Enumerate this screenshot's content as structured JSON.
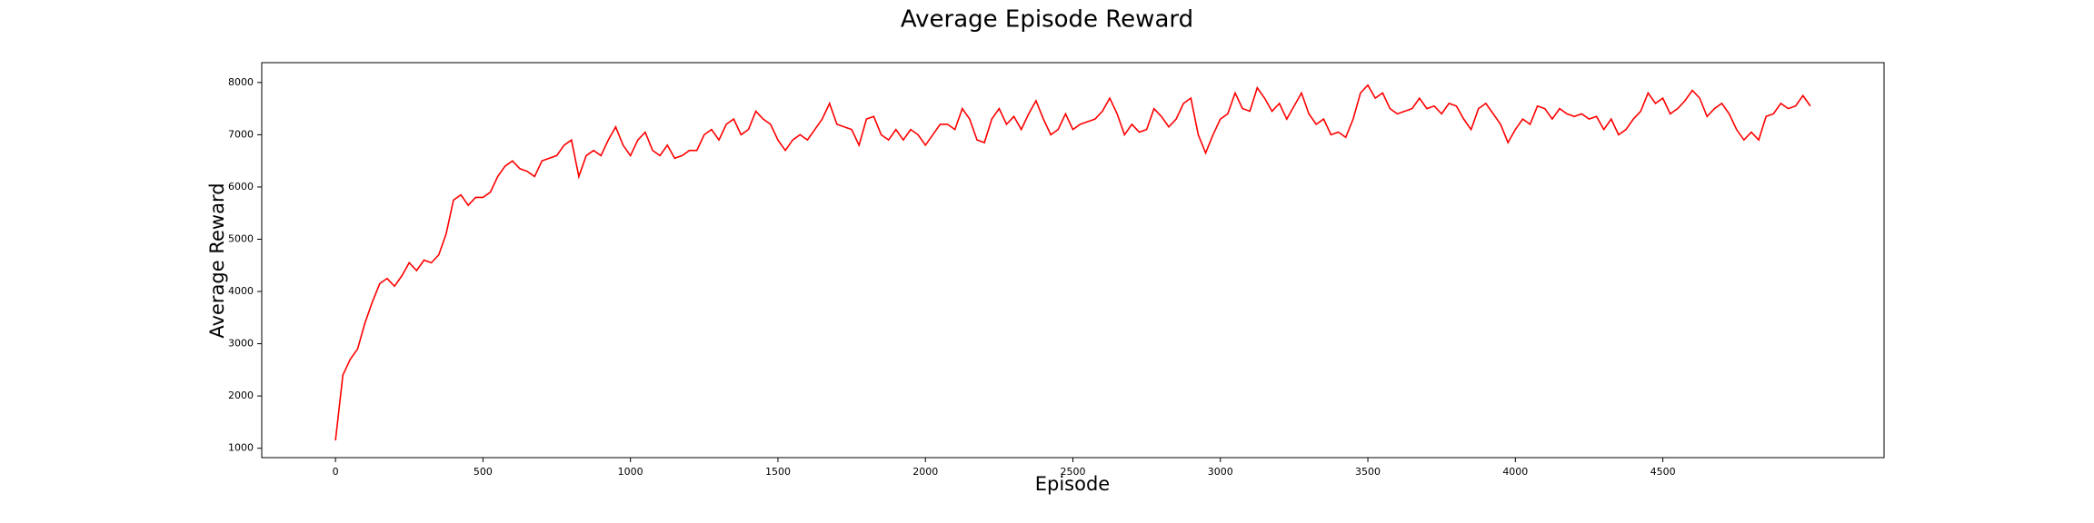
{
  "chart_data": {
    "type": "line",
    "title": "Average Episode Reward",
    "x_label": "Episode",
    "y_label": "Average Reward",
    "x": [
      0,
      25,
      50,
      75,
      100,
      125,
      150,
      175,
      200,
      225,
      250,
      275,
      300,
      325,
      350,
      375,
      400,
      425,
      450,
      475,
      500,
      525,
      550,
      575,
      600,
      625,
      650,
      675,
      700,
      725,
      750,
      775,
      800,
      825,
      850,
      875,
      900,
      925,
      950,
      975,
      1000,
      1025,
      1050,
      1075,
      1100,
      1125,
      1150,
      1175,
      1200,
      1225,
      1250,
      1275,
      1300,
      1325,
      1350,
      1375,
      1400,
      1425,
      1450,
      1475,
      1500,
      1525,
      1550,
      1575,
      1600,
      1625,
      1650,
      1675,
      1700,
      1725,
      1750,
      1775,
      1800,
      1825,
      1850,
      1875,
      1900,
      1925,
      1950,
      1975,
      2000,
      2025,
      2050,
      2075,
      2100,
      2125,
      2150,
      2175,
      2200,
      2225,
      2250,
      2275,
      2300,
      2325,
      2350,
      2375,
      2400,
      2425,
      2450,
      2475,
      2500,
      2525,
      2550,
      2575,
      2600,
      2625,
      2650,
      2675,
      2700,
      2725,
      2750,
      2775,
      2800,
      2825,
      2850,
      2875,
      2900,
      2925,
      2950,
      2975,
      3000,
      3025,
      3050,
      3075,
      3100,
      3125,
      3150,
      3175,
      3200,
      3225,
      3250,
      3275,
      3300,
      3325,
      3350,
      3375,
      3400,
      3425,
      3450,
      3475,
      3500,
      3525,
      3550,
      3575,
      3600,
      3625,
      3650,
      3675,
      3700,
      3725,
      3750,
      3775,
      3800,
      3825,
      3850,
      3875,
      3900,
      3925,
      3950,
      3975,
      4000,
      4025,
      4050,
      4075,
      4100,
      4125,
      4150,
      4175,
      4200,
      4225,
      4250,
      4275,
      4300,
      4325,
      4350,
      4375,
      4400,
      4425,
      4450,
      4475,
      4500,
      4525,
      4550,
      4575,
      4600,
      4625,
      4650,
      4675,
      4700,
      4725,
      4750,
      4775,
      4800,
      4825,
      4850,
      4875,
      4900,
      4925,
      4950,
      4975,
      5000
    ],
    "series": [
      {
        "name": "Average Reward",
        "color": "#ff0000",
        "values": [
          1150,
          2400,
          2700,
          2900,
          3400,
          3800,
          4150,
          4250,
          4100,
          4300,
          4550,
          4400,
          4600,
          4550,
          4700,
          5100,
          5750,
          5850,
          5650,
          5800,
          5800,
          5900,
          6200,
          6400,
          6500,
          6350,
          6300,
          6200,
          6500,
          6550,
          6600,
          6800,
          6900,
          6200,
          6600,
          6700,
          6600,
          6900,
          7150,
          6800,
          6600,
          6900,
          7050,
          6700,
          6600,
          6800,
          6550,
          6600,
          6700,
          6700,
          7000,
          7100,
          6900,
          7200,
          7300,
          7000,
          7100,
          7450,
          7300,
          7200,
          6900,
          6700,
          6900,
          7000,
          6900,
          7100,
          7300,
          7600,
          7200,
          7150,
          7100,
          6800,
          7300,
          7350,
          7000,
          6900,
          7100,
          6900,
          7100,
          7000,
          6800,
          7000,
          7200,
          7200,
          7100,
          7500,
          7300,
          6900,
          6850,
          7300,
          7500,
          7200,
          7350,
          7100,
          7400,
          7650,
          7300,
          7000,
          7100,
          7400,
          7100,
          7200,
          7250,
          7300,
          7450,
          7700,
          7400,
          7000,
          7200,
          7050,
          7100,
          7500,
          7350,
          7150,
          7300,
          7600,
          7700,
          7000,
          6650,
          7000,
          7300,
          7400,
          7800,
          7500,
          7450,
          7900,
          7700,
          7450,
          7600,
          7300,
          7550,
          7800,
          7400,
          7200,
          7300,
          7000,
          7050,
          6950,
          7300,
          7800,
          7950,
          7700,
          7800,
          7500,
          7400,
          7450,
          7500,
          7700,
          7500,
          7550,
          7400,
          7600,
          7550,
          7300,
          7100,
          7500,
          7600,
          7400,
          7200,
          6850,
          7100,
          7300,
          7200,
          7550,
          7500,
          7300,
          7500,
          7400,
          7350,
          7400,
          7300,
          7350,
          7100,
          7300,
          7000,
          7100,
          7300,
          7450,
          7800,
          7600,
          7700,
          7400,
          7500,
          7650,
          7850,
          7700,
          7350,
          7500,
          7600,
          7400,
          7100,
          6900,
          7050,
          6900,
          7350,
          7400,
          7600,
          7500,
          7550,
          7750,
          7550
        ]
      }
    ],
    "xlim": [
      -250,
      5250
    ],
    "ylim": [
      820,
      8380
    ],
    "xticks": [
      0,
      500,
      1000,
      1500,
      2000,
      2500,
      3000,
      3500,
      4000,
      4500
    ],
    "yticks": [
      1000,
      2000,
      3000,
      4000,
      5000,
      6000,
      7000,
      8000
    ]
  }
}
